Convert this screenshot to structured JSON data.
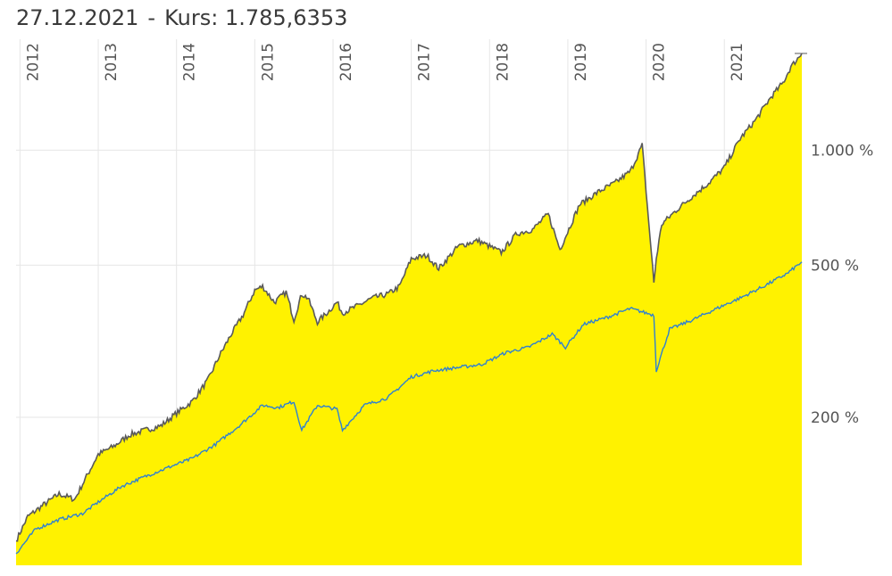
{
  "header": {
    "date": "27.12.2021",
    "separator": "-",
    "price_label": "Kurs:",
    "price_value": "1.785,6353"
  },
  "colors": {
    "area_fill": "#FFF200",
    "main_line": "#5a5a5a",
    "benchmark_line": "#2f80d1",
    "grid": "#e6e6e6",
    "text": "#555555"
  },
  "chart_data": {
    "type": "area",
    "xlabel": "",
    "ylabel": "",
    "y_scale": "log",
    "grid": true,
    "x_ticks": [
      "2012",
      "2013",
      "2014",
      "2015",
      "2016",
      "2017",
      "2018",
      "2019",
      "2020",
      "2021"
    ],
    "y_ticks": [
      {
        "value": 1000,
        "label": "1.000 %"
      },
      {
        "value": 500,
        "label": "500 %"
      },
      {
        "value": 200,
        "label": "200 %"
      }
    ],
    "xlim": [
      2011.95,
      2021.99
    ],
    "ylim": [
      82,
      1950
    ],
    "series": [
      {
        "style": "area",
        "x": [
          2011.95,
          2012.1,
          2012.3,
          2012.5,
          2012.7,
          2012.85,
          2013.0,
          2013.2,
          2013.4,
          2013.6,
          2013.8,
          2014.0,
          2014.2,
          2014.4,
          2014.55,
          2014.7,
          2014.85,
          2015.0,
          2015.1,
          2015.25,
          2015.4,
          2015.5,
          2015.6,
          2015.68,
          2015.8,
          2015.95,
          2016.05,
          2016.12,
          2016.3,
          2016.5,
          2016.7,
          2016.85,
          2017.0,
          2017.2,
          2017.35,
          2017.6,
          2017.85,
          2018.0,
          2018.15,
          2018.35,
          2018.55,
          2018.75,
          2018.9,
          2018.98,
          2019.15,
          2019.4,
          2019.6,
          2019.8,
          2019.95,
          2020.1,
          2020.13,
          2020.2,
          2020.4,
          2020.6,
          2020.8,
          2021.0,
          2021.2,
          2021.4,
          2021.6,
          2021.75,
          2021.85,
          2021.99
        ],
        "values": [
          95,
          110,
          118,
          126,
          122,
          140,
          160,
          168,
          180,
          185,
          190,
          205,
          220,
          250,
          290,
          330,
          370,
          430,
          440,
          400,
          425,
          360,
          420,
          410,
          355,
          380,
          400,
          375,
          390,
          410,
          420,
          440,
          520,
          530,
          490,
          560,
          580,
          560,
          540,
          605,
          620,
          680,
          550,
          600,
          720,
          780,
          820,
          880,
          1030,
          450,
          520,
          640,
          700,
          760,
          820,
          900,
          1070,
          1200,
          1380,
          1500,
          1650,
          1790
        ]
      },
      {
        "style": "line",
        "x": [
          2011.95,
          2012.2,
          2012.5,
          2012.8,
          2013.0,
          2013.3,
          2013.6,
          2013.9,
          2014.2,
          2014.5,
          2014.8,
          2015.1,
          2015.3,
          2015.5,
          2015.6,
          2015.8,
          2016.05,
          2016.12,
          2016.4,
          2016.7,
          2017.0,
          2017.3,
          2017.6,
          2017.9,
          2018.2,
          2018.5,
          2018.8,
          2018.97,
          2019.2,
          2019.5,
          2019.8,
          2020.1,
          2020.13,
          2020.3,
          2020.6,
          2020.9,
          2021.2,
          2021.5,
          2021.8,
          2021.99
        ],
        "values": [
          88,
          102,
          108,
          112,
          120,
          132,
          140,
          148,
          156,
          170,
          190,
          215,
          212,
          220,
          185,
          215,
          210,
          185,
          215,
          225,
          255,
          265,
          270,
          275,
          295,
          305,
          330,
          305,
          350,
          365,
          385,
          370,
          265,
          340,
          360,
          385,
          410,
          440,
          475,
          510
        ]
      }
    ]
  }
}
